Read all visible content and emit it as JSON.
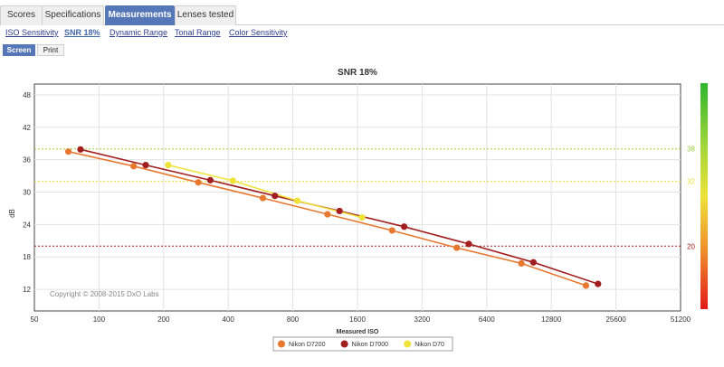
{
  "tabs": [
    {
      "label": "Scores",
      "active": false
    },
    {
      "label": "Specifications",
      "active": false
    },
    {
      "label": "Measurements",
      "active": true
    },
    {
      "label": "Lenses tested",
      "active": false
    }
  ],
  "subnav": [
    {
      "label": "ISO Sensitivity",
      "active": false
    },
    {
      "label": "SNR 18%",
      "active": true
    },
    {
      "label": "Dynamic Range",
      "active": false
    },
    {
      "label": "Tonal Range",
      "active": false
    },
    {
      "label": "Color Sensitivity",
      "active": false
    }
  ],
  "modes": [
    {
      "label": "Screen",
      "active": true
    },
    {
      "label": "Print",
      "active": false
    }
  ],
  "copyright": "Copyright © 2008-2015 DxO Labs",
  "colors": {
    "tab_active": "#5577b8",
    "nikon_d7200": "#e8782f",
    "nikon_d7000": "#a31e1e",
    "nikon_d70": "#efe33a",
    "ref_38": "#9ccd3a",
    "ref_32": "#ece13a",
    "ref_20": "#a31e1e"
  },
  "chart_data": {
    "type": "line",
    "title": "SNR 18%",
    "xlabel": "Measured ISO",
    "ylabel": "dB",
    "x_scale": "log2",
    "xlim": [
      50,
      51200
    ],
    "ylim": [
      8,
      50
    ],
    "x_ticks": [
      50,
      100,
      200,
      400,
      800,
      1600,
      3200,
      6400,
      12800,
      25600,
      51200
    ],
    "x_tick_labels": [
      "50",
      "100",
      "200",
      "400",
      "800",
      "1600",
      "3200",
      "6400",
      "12800",
      "25600",
      "51200"
    ],
    "y_ticks": [
      12,
      18,
      24,
      30,
      36,
      42,
      48
    ],
    "y_tick_labels": [
      "12",
      "18",
      "24",
      "30",
      "36",
      "42",
      "48"
    ],
    "reference_lines": [
      {
        "value": 38,
        "label": "38",
        "color": "#9ccd3a"
      },
      {
        "value": 32,
        "label": "32",
        "color": "#ece13a"
      },
      {
        "value": 20,
        "label": "20",
        "color": "#a31e1e"
      }
    ],
    "series": [
      {
        "name": "Nikon D7200",
        "color": "#e8782f",
        "x": [
          72,
          145,
          290,
          580,
          1160,
          2320,
          4640,
          9280,
          18560
        ],
        "y": [
          37.5,
          34.8,
          31.8,
          28.9,
          25.9,
          22.9,
          19.7,
          16.8,
          12.7
        ]
      },
      {
        "name": "Nikon D7000",
        "color": "#a31e1e",
        "x": [
          82,
          165,
          330,
          660,
          1320,
          2640,
          5280,
          10560,
          21120
        ],
        "y": [
          37.9,
          35.0,
          32.2,
          29.3,
          26.5,
          23.6,
          20.4,
          17.0,
          13.0
        ]
      },
      {
        "name": "Nikon D70",
        "color": "#efe33a",
        "x": [
          210,
          420,
          840,
          1680
        ],
        "y": [
          35.0,
          32.1,
          28.4,
          25.3
        ]
      }
    ],
    "legend_position": "bottom-center"
  }
}
